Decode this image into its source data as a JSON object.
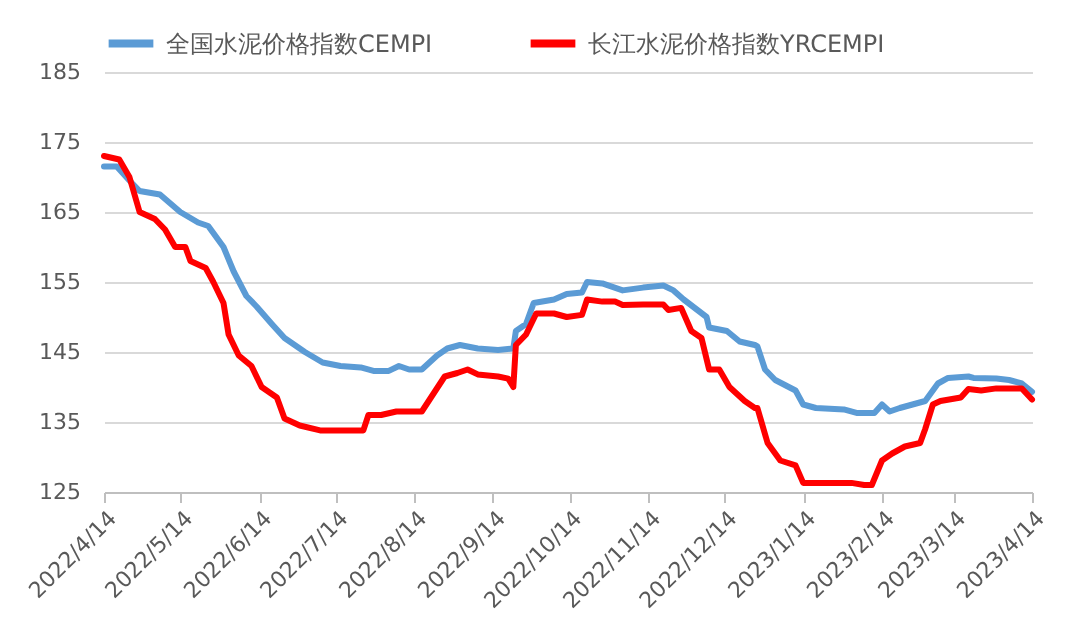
{
  "chart_data": {
    "type": "line",
    "xlim": [
      "2022-04-14",
      "2023-04-14"
    ],
    "ylim": [
      125,
      185
    ],
    "yticks": [
      125,
      135,
      145,
      155,
      165,
      175,
      185
    ],
    "xticks": [
      {
        "value": "2022-04-14",
        "label": "2022/4/14"
      },
      {
        "value": "2022-05-14",
        "label": "2022/5/14"
      },
      {
        "value": "2022-06-14",
        "label": "2022/6/14"
      },
      {
        "value": "2022-07-14",
        "label": "2022/7/14"
      },
      {
        "value": "2022-08-14",
        "label": "2022/8/14"
      },
      {
        "value": "2022-09-14",
        "label": "2022/9/14"
      },
      {
        "value": "2022-10-14",
        "label": "2022/10/14"
      },
      {
        "value": "2022-11-14",
        "label": "2022/11/14"
      },
      {
        "value": "2022-12-14",
        "label": "2022/12/14"
      },
      {
        "value": "2023-01-14",
        "label": "2023/1/14"
      },
      {
        "value": "2023-02-14",
        "label": "2023/2/14"
      },
      {
        "value": "2023-03-14",
        "label": "2023/3/14"
      },
      {
        "value": "2023-04-14",
        "label": "2023/4/14"
      }
    ],
    "grid": "y",
    "legend": "top",
    "line_style": "solid",
    "marker": "none",
    "series": [
      {
        "name": "全国水泥价格指数CEMPI",
        "color": "#5b9bd5",
        "x": [
          "2022-04-14",
          "2022-04-19",
          "2022-04-24",
          "2022-04-28",
          "2022-05-06",
          "2022-05-14",
          "2022-05-21",
          "2022-05-25",
          "2022-05-31",
          "2022-06-04",
          "2022-06-09",
          "2022-06-13",
          "2022-06-19",
          "2022-06-24",
          "2022-07-02",
          "2022-07-09",
          "2022-07-16",
          "2022-07-24",
          "2022-07-29",
          "2022-08-04",
          "2022-08-08",
          "2022-08-12",
          "2022-08-17",
          "2022-08-23",
          "2022-08-27",
          "2022-09-01",
          "2022-09-08",
          "2022-09-16",
          "2022-09-22",
          "2022-09-23",
          "2022-09-27",
          "2022-09-30",
          "2022-10-08",
          "2022-10-13",
          "2022-10-19",
          "2022-10-21",
          "2022-10-27",
          "2022-11-04",
          "2022-11-12",
          "2022-11-20",
          "2022-11-24",
          "2022-11-28",
          "2022-12-07",
          "2022-12-08",
          "2022-12-15",
          "2022-12-20",
          "2022-12-26",
          "2022-12-27",
          "2022-12-30",
          "2023-01-03",
          "2023-01-11",
          "2023-01-14",
          "2023-01-19",
          "2023-01-30",
          "2023-02-04",
          "2023-02-11",
          "2023-02-14",
          "2023-02-17",
          "2023-02-21",
          "2023-02-26",
          "2023-03-03",
          "2023-03-08",
          "2023-03-12",
          "2023-03-20",
          "2023-03-22",
          "2023-03-31",
          "2023-04-05",
          "2023-04-10",
          "2023-04-14"
        ],
        "values": [
          171.5,
          171.5,
          169.5,
          168,
          167.5,
          165,
          163.5,
          163,
          160,
          156.5,
          153,
          151.5,
          149,
          147,
          145,
          143.5,
          143,
          142.8,
          142.3,
          142.3,
          143,
          142.5,
          142.5,
          144.5,
          145.5,
          146,
          145.5,
          145.3,
          145.5,
          148,
          149,
          152,
          152.5,
          153.3,
          153.5,
          155,
          154.8,
          153.8,
          154.2,
          154.5,
          153.8,
          152.5,
          150,
          148.5,
          148,
          146.5,
          146,
          145.8,
          142.5,
          141,
          139.5,
          137.5,
          137,
          136.8,
          136.3,
          136.3,
          137.5,
          136.5,
          137,
          137.5,
          138,
          140.5,
          141.3,
          141.5,
          141.3,
          141.2,
          141,
          140.5,
          139.3
        ]
      },
      {
        "name": "长江水泥价格指数YRCEMPI",
        "color": "#ff0000",
        "x": [
          "2022-04-14",
          "2022-04-20",
          "2022-04-24",
          "2022-04-28",
          "2022-05-04",
          "2022-05-08",
          "2022-05-12",
          "2022-05-16",
          "2022-05-18",
          "2022-05-24",
          "2022-05-27",
          "2022-05-31",
          "2022-06-02",
          "2022-06-06",
          "2022-06-11",
          "2022-06-15",
          "2022-06-19",
          "2022-06-21",
          "2022-06-24",
          "2022-06-30",
          "2022-07-08",
          "2022-07-19",
          "2022-07-25",
          "2022-07-27",
          "2022-08-01",
          "2022-08-07",
          "2022-08-15",
          "2022-08-17",
          "2022-08-26",
          "2022-08-31",
          "2022-09-04",
          "2022-09-08",
          "2022-09-16",
          "2022-09-20",
          "2022-09-22",
          "2022-09-23",
          "2022-09-27",
          "2022-10-01",
          "2022-10-08",
          "2022-10-13",
          "2022-10-19",
          "2022-10-21",
          "2022-10-27",
          "2022-11-01",
          "2022-11-04",
          "2022-11-12",
          "2022-11-20",
          "2022-11-22",
          "2022-11-27",
          "2022-12-01",
          "2022-12-05",
          "2022-12-08",
          "2022-12-12",
          "2022-12-16",
          "2022-12-22",
          "2022-12-26",
          "2022-12-27",
          "2022-12-31",
          "2023-01-05",
          "2023-01-11",
          "2023-01-14",
          "2023-02-02",
          "2023-02-07",
          "2023-02-10",
          "2023-02-14",
          "2023-02-18",
          "2023-02-23",
          "2023-03-01",
          "2023-03-03",
          "2023-03-06",
          "2023-03-09",
          "2023-03-17",
          "2023-03-20",
          "2023-03-25",
          "2023-03-31",
          "2023-04-10",
          "2023-04-14"
        ],
        "values": [
          173,
          172.5,
          170,
          165,
          164,
          162.5,
          160,
          160,
          158,
          157,
          155,
          152,
          147.5,
          144.5,
          143,
          140,
          139,
          138.5,
          135.5,
          134.5,
          133.8,
          133.8,
          133.8,
          136,
          136,
          136.5,
          136.5,
          136.5,
          141.5,
          142,
          142.5,
          141.8,
          141.5,
          141.2,
          140,
          146,
          147.5,
          150.5,
          150.5,
          150,
          150.3,
          152.5,
          152.2,
          152.2,
          151.7,
          151.8,
          151.8,
          151,
          151.3,
          148,
          147,
          142.5,
          142.5,
          140,
          138,
          137,
          137,
          132,
          129.5,
          128.8,
          126.3,
          126.3,
          126,
          126,
          129.5,
          130.5,
          131.5,
          132,
          134,
          137.5,
          138,
          138.5,
          139.7,
          139.5,
          139.8,
          139.8,
          138.2
        ]
      }
    ]
  }
}
